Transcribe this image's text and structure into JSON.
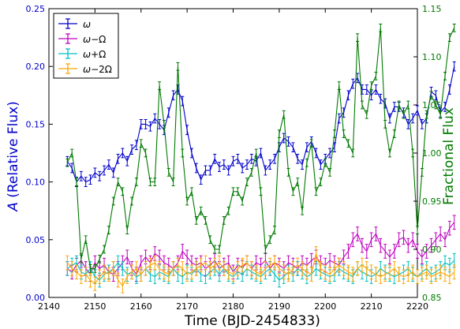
{
  "chart_data": {
    "type": "line",
    "xlabel": "Time (BJD-2454833)",
    "ylabel_left_italic": "A",
    "ylabel_left_rest": " (Relative Flux)",
    "ylabel_right": "Fractional Flux",
    "xlim": [
      2140,
      2220
    ],
    "ylim_left": [
      0.0,
      0.25
    ],
    "ylim_right": [
      0.85,
      1.15
    ],
    "x_ticks": [
      2140,
      2150,
      2160,
      2170,
      2180,
      2190,
      2200,
      2210,
      2220
    ],
    "x_tick_labels": [
      "2140",
      "2150",
      "2160",
      "2170",
      "2180",
      "2190",
      "2200",
      "2210",
      "2220"
    ],
    "y_left_ticks": [
      0.0,
      0.05,
      0.1,
      0.15,
      0.2,
      0.25
    ],
    "y_left_tick_labels": [
      "0.00",
      "0.05",
      "0.10",
      "0.15",
      "0.20",
      "0.25"
    ],
    "y_right_ticks": [
      0.85,
      0.9,
      0.95,
      1.0,
      1.05,
      1.1,
      1.15
    ],
    "y_right_tick_labels": [
      "0.85",
      "0.90",
      "0.95",
      "1.00",
      "1.05",
      "1.10",
      "1.15"
    ],
    "grid": false,
    "legend_position": "top-left",
    "x_start": 2144,
    "x_step": 1,
    "legend": [
      {
        "math_base": "ω",
        "math_op": "",
        "math_coef": "",
        "math_sym": "",
        "color": "#0000cc"
      },
      {
        "math_base": "ω",
        "math_op": "−",
        "math_coef": "",
        "math_sym": "Ω",
        "color": "#bf00bf"
      },
      {
        "math_base": "ω",
        "math_op": "+",
        "math_coef": "",
        "math_sym": "Ω",
        "color": "#00bfbf"
      },
      {
        "math_base": "ω",
        "math_op": "−",
        "math_coef": "2",
        "math_sym": "Ω",
        "color": "#ffa500"
      }
    ],
    "series": [
      {
        "axis": "left",
        "color": "#0000cc",
        "err": 0.004,
        "values": [
          0.118,
          0.112,
          0.1,
          0.105,
          0.1,
          0.102,
          0.108,
          0.105,
          0.11,
          0.115,
          0.108,
          0.12,
          0.125,
          0.118,
          0.128,
          0.132,
          0.15,
          0.15,
          0.148,
          0.155,
          0.15,
          0.145,
          0.16,
          0.175,
          0.18,
          0.17,
          0.145,
          0.125,
          0.112,
          0.102,
          0.11,
          0.11,
          0.12,
          0.113,
          0.115,
          0.11,
          0.118,
          0.12,
          0.112,
          0.115,
          0.12,
          0.118,
          0.125,
          0.11,
          0.115,
          0.12,
          0.13,
          0.138,
          0.135,
          0.13,
          0.12,
          0.115,
          0.13,
          0.135,
          0.125,
          0.115,
          0.12,
          0.125,
          0.13,
          0.155,
          0.16,
          0.175,
          0.185,
          0.19,
          0.18,
          0.18,
          0.175,
          0.18,
          0.172,
          0.168,
          0.155,
          0.165,
          0.165,
          0.16,
          0.15,
          0.155,
          0.162,
          0.15,
          0.155,
          0.178,
          0.175,
          0.16,
          0.165,
          0.18,
          0.2
        ]
      },
      {
        "axis": "left",
        "color": "#bf00bf",
        "err": 0.006,
        "values": [
          0.025,
          0.022,
          0.028,
          0.032,
          0.025,
          0.02,
          0.03,
          0.025,
          0.028,
          0.022,
          0.02,
          0.025,
          0.03,
          0.035,
          0.025,
          0.02,
          0.03,
          0.035,
          0.03,
          0.038,
          0.035,
          0.03,
          0.028,
          0.025,
          0.03,
          0.04,
          0.035,
          0.03,
          0.028,
          0.03,
          0.025,
          0.028,
          0.032,
          0.025,
          0.028,
          0.03,
          0.022,
          0.028,
          0.026,
          0.03,
          0.025,
          0.03,
          0.028,
          0.032,
          0.025,
          0.03,
          0.028,
          0.025,
          0.03,
          0.028,
          0.025,
          0.03,
          0.028,
          0.032,
          0.035,
          0.03,
          0.028,
          0.032,
          0.03,
          0.028,
          0.035,
          0.04,
          0.05,
          0.055,
          0.045,
          0.04,
          0.05,
          0.055,
          0.045,
          0.04,
          0.035,
          0.04,
          0.05,
          0.052,
          0.045,
          0.05,
          0.04,
          0.035,
          0.04,
          0.045,
          0.05,
          0.055,
          0.05,
          0.06,
          0.065
        ]
      },
      {
        "axis": "left",
        "color": "#00bfbf",
        "err": 0.006,
        "values": [
          0.025,
          0.028,
          0.03,
          0.022,
          0.02,
          0.025,
          0.018,
          0.015,
          0.02,
          0.022,
          0.025,
          0.03,
          0.025,
          0.02,
          0.022,
          0.018,
          0.02,
          0.025,
          0.02,
          0.018,
          0.022,
          0.02,
          0.018,
          0.025,
          0.02,
          0.018,
          0.022,
          0.02,
          0.025,
          0.02,
          0.018,
          0.022,
          0.025,
          0.02,
          0.025,
          0.02,
          0.018,
          0.022,
          0.02,
          0.025,
          0.022,
          0.02,
          0.018,
          0.022,
          0.025,
          0.02,
          0.015,
          0.018,
          0.022,
          0.02,
          0.025,
          0.022,
          0.018,
          0.02,
          0.025,
          0.022,
          0.02,
          0.018,
          0.02,
          0.025,
          0.022,
          0.02,
          0.018,
          0.025,
          0.022,
          0.02,
          0.018,
          0.02,
          0.025,
          0.022,
          0.02,
          0.018,
          0.02,
          0.022,
          0.025,
          0.02,
          0.018,
          0.022,
          0.025,
          0.02,
          0.022,
          0.025,
          0.03,
          0.028,
          0.032
        ]
      },
      {
        "axis": "left",
        "color": "#ffa500",
        "err": 0.006,
        "values": [
          0.03,
          0.025,
          0.022,
          0.018,
          0.02,
          0.015,
          0.012,
          0.018,
          0.022,
          0.02,
          0.025,
          0.015,
          0.01,
          0.018,
          0.022,
          0.025,
          0.02,
          0.025,
          0.028,
          0.03,
          0.025,
          0.022,
          0.02,
          0.025,
          0.028,
          0.025,
          0.02,
          0.022,
          0.025,
          0.028,
          0.03,
          0.025,
          0.028,
          0.03,
          0.025,
          0.022,
          0.02,
          0.025,
          0.028,
          0.03,
          0.025,
          0.022,
          0.02,
          0.025,
          0.028,
          0.03,
          0.025,
          0.022,
          0.02,
          0.025,
          0.028,
          0.025,
          0.022,
          0.02,
          0.038,
          0.025,
          0.022,
          0.02,
          0.025,
          0.028,
          0.025,
          0.022,
          0.02,
          0.025,
          0.028,
          0.025,
          0.022,
          0.02,
          0.018,
          0.02,
          0.022,
          0.025,
          0.02,
          0.018,
          0.02,
          0.022,
          0.018,
          0.02,
          0.022,
          0.018,
          0.02,
          0.022,
          0.02,
          0.018,
          0.022
        ]
      },
      {
        "axis": "right",
        "color": "#007a00",
        "err": 0.004,
        "values": [
          0.99,
          1.0,
          0.97,
          0.89,
          0.91,
          0.88,
          0.88,
          0.89,
          0.9,
          0.92,
          0.95,
          0.97,
          0.96,
          0.92,
          0.95,
          0.97,
          1.01,
          1.0,
          0.97,
          0.97,
          1.07,
          1.03,
          0.98,
          0.97,
          1.09,
          1.0,
          0.95,
          0.96,
          0.93,
          0.94,
          0.93,
          0.91,
          0.9,
          0.9,
          0.93,
          0.94,
          0.96,
          0.96,
          0.95,
          0.97,
          0.98,
          1.0,
          0.96,
          0.9,
          0.91,
          0.92,
          1.02,
          1.04,
          0.98,
          0.96,
          0.97,
          0.94,
          0.99,
          1.01,
          0.96,
          0.97,
          0.99,
          0.98,
          1.02,
          1.07,
          1.02,
          1.01,
          1.0,
          1.12,
          1.05,
          1.04,
          1.07,
          1.08,
          1.13,
          1.03,
          1.0,
          1.02,
          1.05,
          1.04,
          1.05,
          1.0,
          0.92,
          0.98,
          1.04,
          1.06,
          1.05,
          1.04,
          1.08,
          1.12,
          1.13
        ]
      }
    ]
  }
}
